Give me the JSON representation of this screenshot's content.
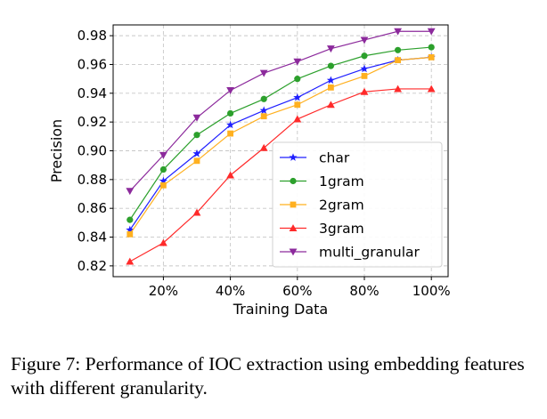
{
  "chart_data": {
    "type": "line",
    "title": "",
    "xlabel": "Training Data",
    "ylabel": "Precision",
    "x": [
      10,
      20,
      30,
      40,
      50,
      60,
      70,
      80,
      90,
      100
    ],
    "xticks": [
      20,
      40,
      60,
      80,
      100
    ],
    "xtick_labels": [
      "20%",
      "40%",
      "60%",
      "80%",
      "100%"
    ],
    "xlim": [
      5,
      105
    ],
    "yticks": [
      0.82,
      0.84,
      0.86,
      0.88,
      0.9,
      0.92,
      0.94,
      0.96,
      0.98
    ],
    "ytick_labels": [
      "0.82",
      "0.84",
      "0.86",
      "0.88",
      "0.90",
      "0.92",
      "0.94",
      "0.96",
      "0.98"
    ],
    "ylim": [
      0.8125,
      0.9875
    ],
    "grid": "horizontal dashed",
    "legend_position": "lower-right",
    "series": [
      {
        "name": "char",
        "color": "#1f1fff",
        "marker": "star",
        "values": [
          0.845,
          0.879,
          0.898,
          0.918,
          0.928,
          0.937,
          0.949,
          0.957,
          0.963,
          0.965
        ]
      },
      {
        "name": "1gram",
        "color": "#2ca02c",
        "marker": "circle",
        "values": [
          0.852,
          0.887,
          0.911,
          0.926,
          0.936,
          0.95,
          0.959,
          0.966,
          0.97,
          0.972
        ]
      },
      {
        "name": "2gram",
        "color": "#ffb01f",
        "marker": "square",
        "values": [
          0.842,
          0.876,
          0.893,
          0.912,
          0.924,
          0.932,
          0.944,
          0.952,
          0.963,
          0.965
        ]
      },
      {
        "name": "3gram",
        "color": "#ff2a2a",
        "marker": "triangle-up",
        "values": [
          0.823,
          0.836,
          0.857,
          0.883,
          0.902,
          0.922,
          0.932,
          0.941,
          0.943,
          0.943
        ]
      },
      {
        "name": "multi_granular",
        "color": "#8c2a9c",
        "marker": "triangle-down",
        "values": [
          0.872,
          0.897,
          0.923,
          0.942,
          0.954,
          0.962,
          0.971,
          0.977,
          0.983,
          0.983
        ]
      }
    ]
  },
  "caption": "Figure 7: Performance of IOC extraction using embedding features with different granularity."
}
